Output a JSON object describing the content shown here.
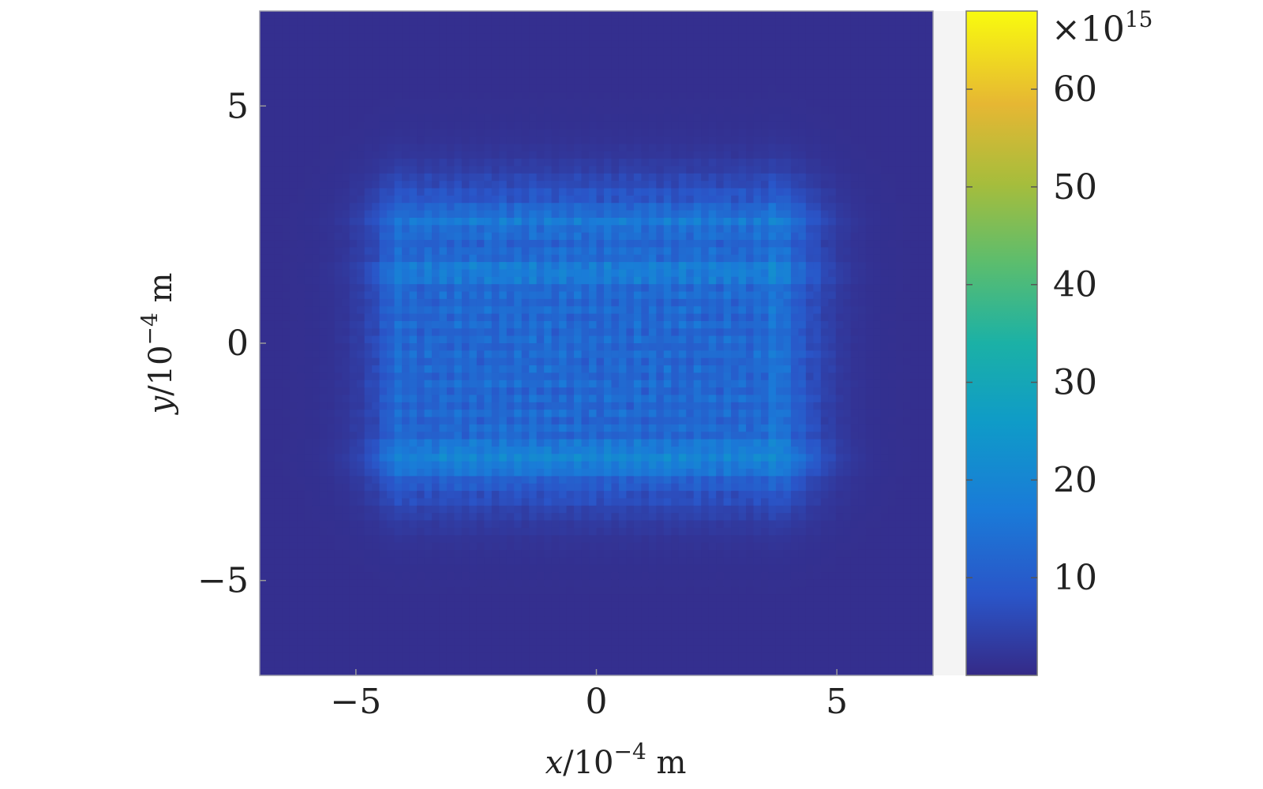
{
  "chart_data": {
    "type": "heatmap",
    "title": "",
    "xlabel": "x/10⁻⁴ m",
    "ylabel": "y/10⁻⁴ m",
    "xlabel_parts": {
      "var": "x",
      "base": "/10",
      "exp": "−4",
      "unit": " m"
    },
    "ylabel_parts": {
      "var": "y",
      "base": "/10",
      "exp": "−4",
      "unit": " m"
    },
    "xlim": [
      -7,
      7
    ],
    "ylim": [
      -7,
      7
    ],
    "x_ticks": [
      -5,
      0,
      5
    ],
    "y_ticks": [
      -5,
      0,
      5
    ],
    "x_tick_labels": [
      "−5",
      "0",
      "5"
    ],
    "y_tick_labels": [
      "−5",
      "0",
      "5"
    ],
    "colorbar": {
      "colormap": "parula",
      "multiplier": "×10",
      "multiplier_exp": "15",
      "range": [
        0,
        68
      ],
      "ticks": [
        10,
        20,
        30,
        40,
        50,
        60
      ],
      "tick_labels": [
        "10",
        "20",
        "30",
        "40",
        "50",
        "60"
      ]
    },
    "feature": {
      "description": "rectangular region of elevated intensity with grid-like fine structure",
      "x_extent": [
        -4.5,
        4.5
      ],
      "y_extent": [
        -3,
        3
      ],
      "bright_rows_y": [
        2.6,
        1.5,
        -2.3,
        -2.6
      ],
      "bright_cols_x": [
        -4.2,
        3.8
      ],
      "typical_value": 12,
      "peak_value": 25,
      "background_value": 1
    }
  }
}
